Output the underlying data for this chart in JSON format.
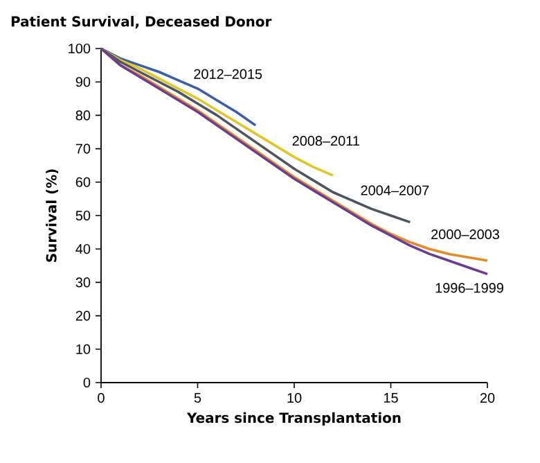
{
  "chart_data": {
    "type": "line",
    "title": "Patient Survival, Deceased Donor",
    "xlabel": "Years since Transplantation",
    "ylabel": "Survival (%)",
    "xlim": [
      0,
      20
    ],
    "ylim": [
      0,
      100
    ],
    "xticks": [
      0,
      5,
      10,
      15,
      20
    ],
    "yticks": [
      0,
      10,
      20,
      30,
      40,
      50,
      60,
      70,
      80,
      90,
      100
    ],
    "grid": false,
    "legend": false,
    "marker": "none",
    "line_style": "solid",
    "series": [
      {
        "name": "2012–2015",
        "color": "#3a5fa8",
        "x": [
          0,
          1,
          2,
          3,
          4,
          5,
          6,
          7,
          8
        ],
        "values": [
          100,
          97,
          95,
          93,
          90.5,
          88,
          84.5,
          81,
          77
        ]
      },
      {
        "name": "2008–2011",
        "color": "#e0c62a",
        "x": [
          0,
          1,
          2,
          3,
          4,
          5,
          6,
          7,
          8,
          9,
          10,
          11,
          12
        ],
        "values": [
          100,
          96.5,
          94,
          91,
          88,
          85,
          81.5,
          78,
          74.5,
          71,
          67.5,
          64.5,
          62
        ]
      },
      {
        "name": "2004–2007",
        "color": "#4f5460",
        "x": [
          0,
          1,
          2,
          3,
          4,
          5,
          6,
          7,
          8,
          9,
          10,
          11,
          12,
          13,
          14,
          15,
          16
        ],
        "values": [
          100,
          96,
          93,
          90,
          87,
          83.5,
          80,
          76,
          72,
          68,
          64,
          60.5,
          57,
          54.5,
          52,
          50,
          48
        ]
      },
      {
        "name": "2000–2003",
        "color": "#e38a2b",
        "x": [
          0,
          1,
          2,
          3,
          4,
          5,
          6,
          7,
          8,
          9,
          10,
          11,
          12,
          13,
          14,
          15,
          16,
          17,
          18,
          19,
          20
        ],
        "values": [
          100,
          95,
          92,
          88.5,
          85,
          81.5,
          77.5,
          73.5,
          69.5,
          65.5,
          61.5,
          58,
          54.5,
          51,
          47.5,
          44.5,
          42,
          40,
          38.5,
          37.5,
          36.5
        ]
      },
      {
        "name": "1996–1999",
        "color": "#6a3d8f",
        "x": [
          0,
          1,
          2,
          3,
          4,
          5,
          6,
          7,
          8,
          9,
          10,
          11,
          12,
          13,
          14,
          15,
          16,
          17,
          18,
          19,
          20
        ],
        "values": [
          100,
          95,
          91.5,
          88,
          84.5,
          81,
          77,
          73,
          69,
          65,
          61,
          57.5,
          54,
          50.5,
          47,
          44,
          41,
          38.5,
          36.5,
          34.5,
          32.5
        ]
      }
    ]
  }
}
